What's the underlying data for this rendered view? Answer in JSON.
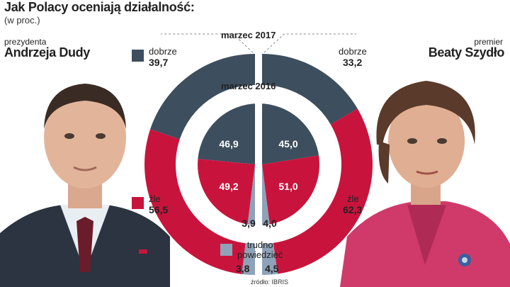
{
  "title": "Jak Polacy oceniają działalność:",
  "subtitle": "(w proc.)",
  "left_person": {
    "role": "prezydenta",
    "name": "Andrzeja Dudy"
  },
  "right_person": {
    "role": "premier",
    "name": "Beaty Szydło"
  },
  "source": "źródło: IBRIS",
  "colors": {
    "dobrze": "#3d4e5e",
    "zle": "#c8143c",
    "trudno": "#8ea2b8"
  },
  "chart_data": {
    "type": "pie",
    "subtype": "mirrored-double-donut",
    "unit": "proc.",
    "categories": [
      "dobrze",
      "źle",
      "trudno powiedzieć"
    ],
    "rings": [
      {
        "label": "marzec 2017",
        "ring": "outer",
        "series": [
          {
            "name": "Andrzeja Dudy",
            "values": [
              39.7,
              56.5,
              3.8
            ]
          },
          {
            "name": "Beaty Szydło",
            "values": [
              33.2,
              62.3,
              4.5
            ]
          }
        ]
      },
      {
        "label": "marzec 2016",
        "ring": "inner",
        "series": [
          {
            "name": "Andrzeja Dudy",
            "values": [
              46.9,
              49.2,
              3.9
            ]
          },
          {
            "name": "Beaty Szydło",
            "values": [
              45.0,
              51.0,
              4.0
            ]
          }
        ]
      }
    ],
    "labels": {
      "dobrze": "dobrze",
      "zle": "źle",
      "trudno": "trudno\npowiedzieć",
      "outer_left": [
        "39,7",
        "56,5",
        "3,8"
      ],
      "outer_right": [
        "33,2",
        "62,3",
        "4,5"
      ],
      "inner_left": [
        "46,9",
        "49,2",
        "3,9"
      ],
      "inner_right": [
        "45,0",
        "51,0",
        "4,0"
      ]
    }
  }
}
